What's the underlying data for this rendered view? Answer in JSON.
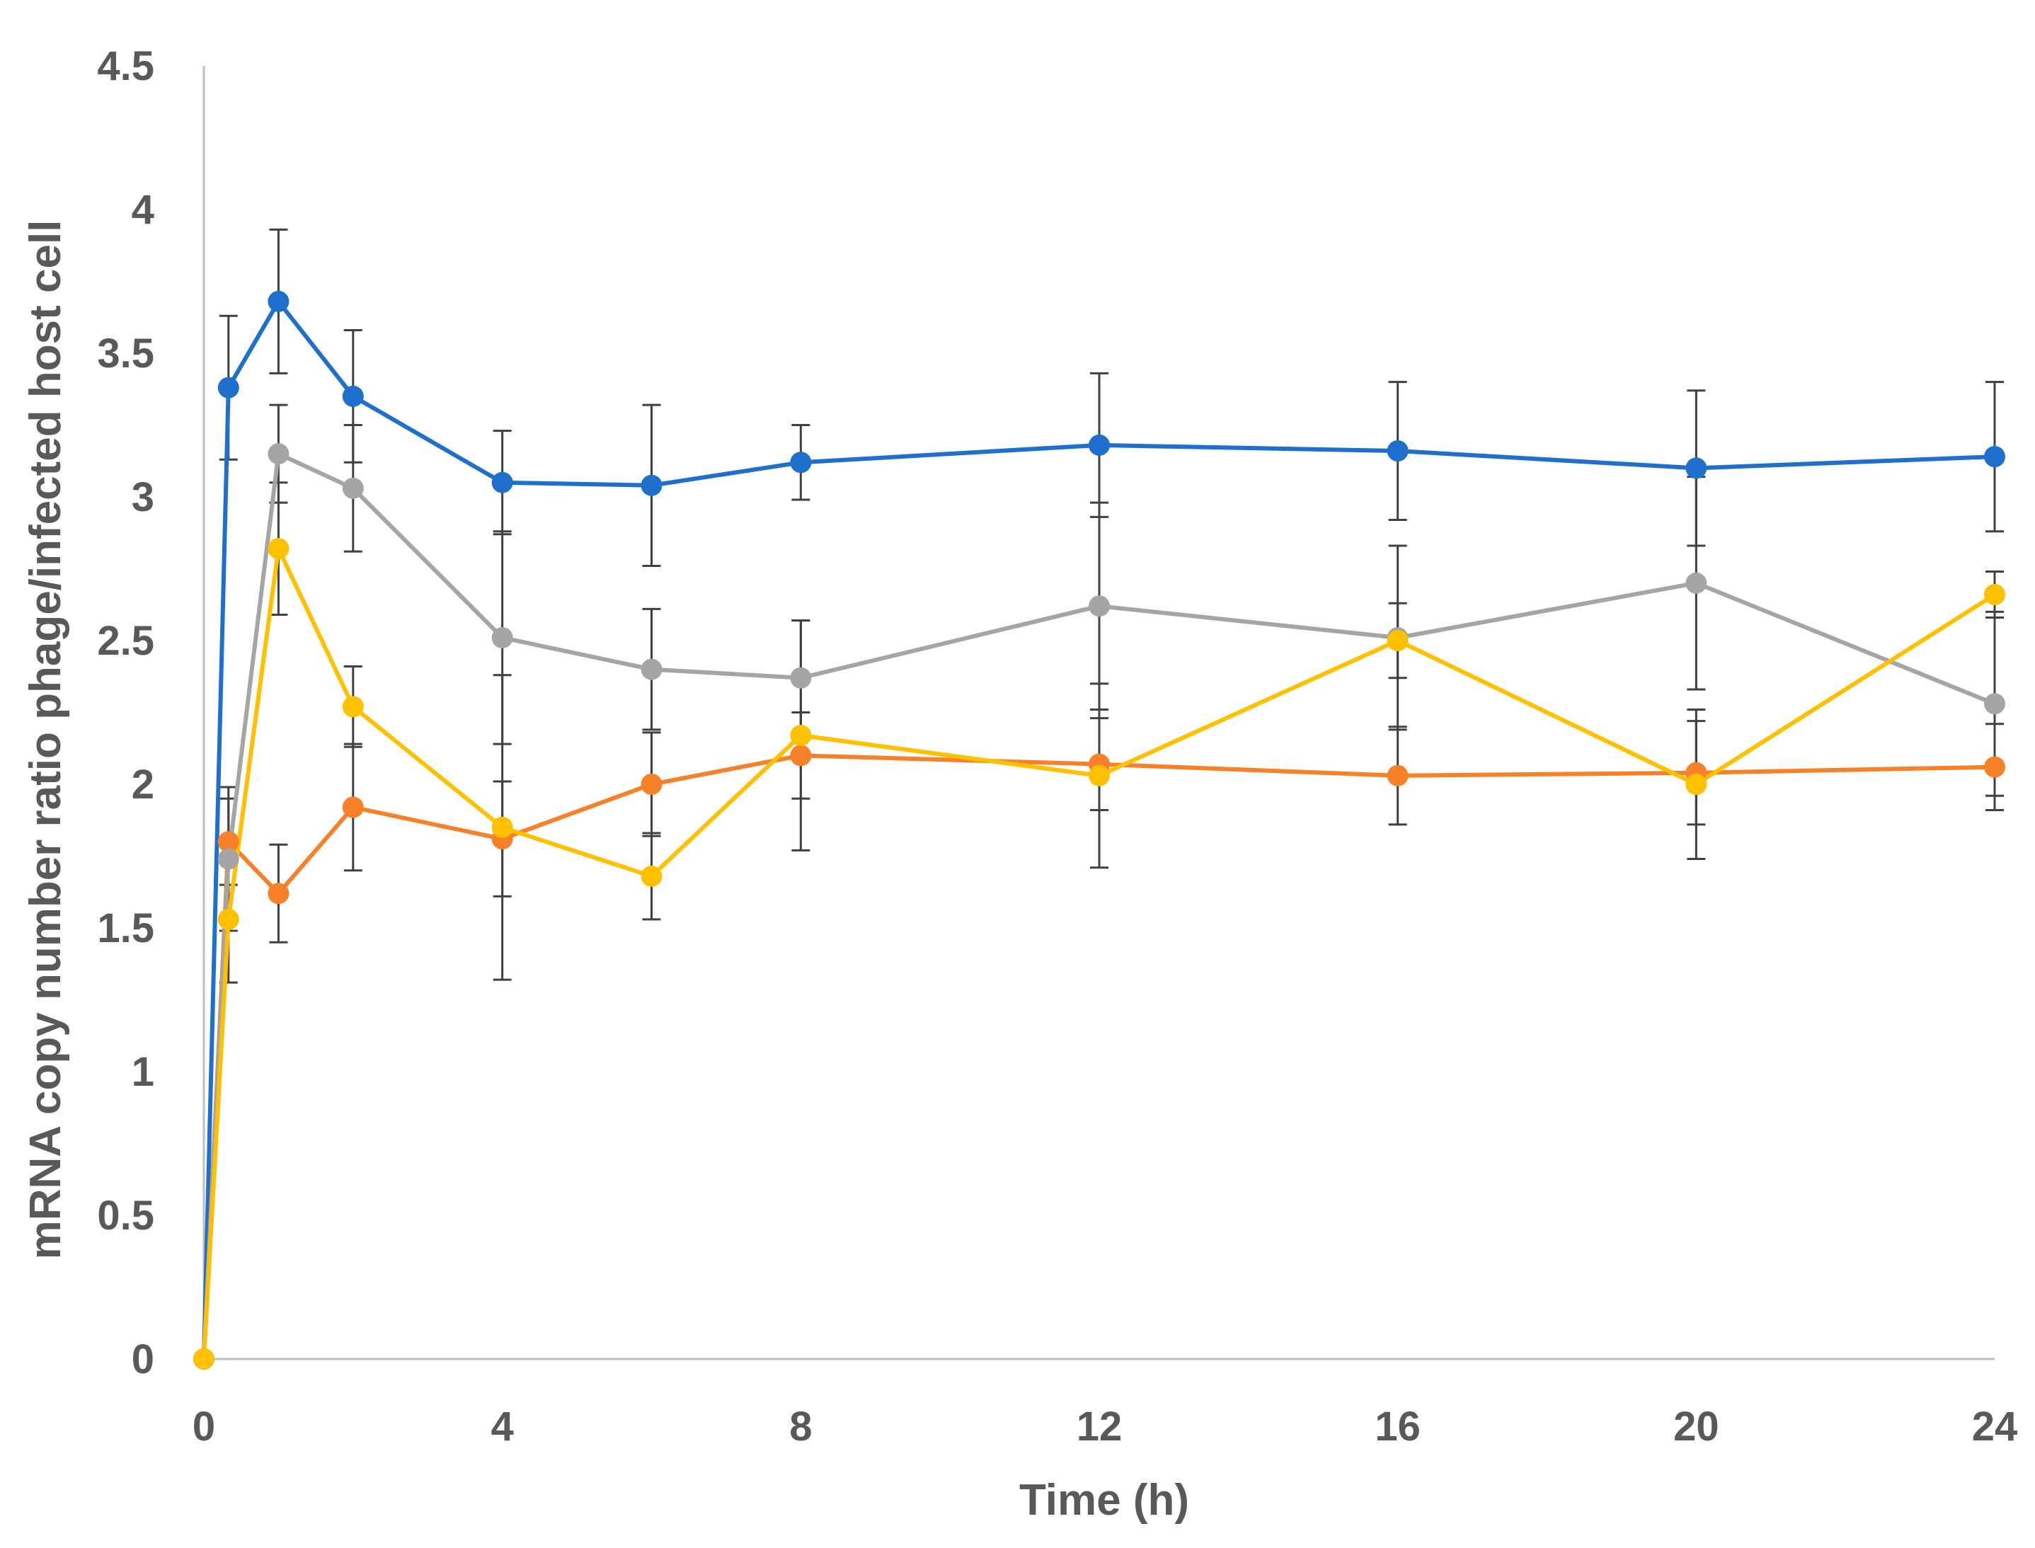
{
  "chart_data": {
    "type": "line",
    "title": "",
    "xlabel": "Time (h)",
    "ylabel": "mRNA copy number ratio phage/infected host cell",
    "x": [
      0,
      0.33,
      1,
      2,
      4,
      6,
      8,
      12,
      16,
      20,
      24
    ],
    "xlim": [
      0,
      24
    ],
    "ylim": [
      0,
      4.5
    ],
    "x_ticks": [
      0,
      4,
      8,
      12,
      16,
      20,
      24
    ],
    "x_tick_labels": [
      "0",
      "4",
      "8",
      "12",
      "16",
      "20",
      "24"
    ],
    "y_ticks": [
      0,
      0.5,
      1,
      1.5,
      2,
      2.5,
      3,
      3.5,
      4,
      4.5
    ],
    "y_tick_labels": [
      "0",
      "0.5",
      "1",
      "1.5",
      "2",
      "2.5",
      "3",
      "3.5",
      "4",
      "4.5"
    ],
    "grid": false,
    "legend": "none",
    "series": [
      {
        "name": "blue",
        "color": "#1f6fcc",
        "values": [
          0,
          3.38,
          3.68,
          3.35,
          3.05,
          3.04,
          3.12,
          3.18,
          3.16,
          3.1,
          3.14
        ],
        "error": [
          0,
          0.25,
          0.25,
          0.23,
          0.18,
          0.28,
          0.13,
          0.25,
          0.24,
          0.27,
          0.26
        ]
      },
      {
        "name": "orange",
        "color": "#f78129",
        "values": [
          0,
          1.8,
          1.62,
          1.92,
          1.81,
          2.0,
          2.1,
          2.07,
          2.03,
          2.04,
          2.06
        ],
        "error": [
          0,
          0.15,
          0.17,
          0.22,
          0.2,
          0.18,
          0.15,
          0.16,
          0.17,
          0.18,
          0.15
        ]
      },
      {
        "name": "gray",
        "color": "#a5a5a5",
        "values": [
          0,
          1.74,
          3.15,
          3.03,
          2.51,
          2.4,
          2.37,
          2.62,
          2.51,
          2.7,
          2.28
        ],
        "error": [
          0,
          0.25,
          0.17,
          0.22,
          0.37,
          0.21,
          0.2,
          0.36,
          0.32,
          0.37,
          0.32
        ]
      },
      {
        "name": "yellow",
        "color": "#ffc000",
        "values": [
          0,
          1.53,
          2.82,
          2.27,
          1.85,
          1.68,
          2.17,
          2.03,
          2.5,
          2.0,
          2.66
        ],
        "error": [
          0,
          0.22,
          0.23,
          0.14,
          0.53,
          0.15,
          0.4,
          0.32,
          0.13,
          0.26,
          0.08
        ]
      }
    ]
  }
}
